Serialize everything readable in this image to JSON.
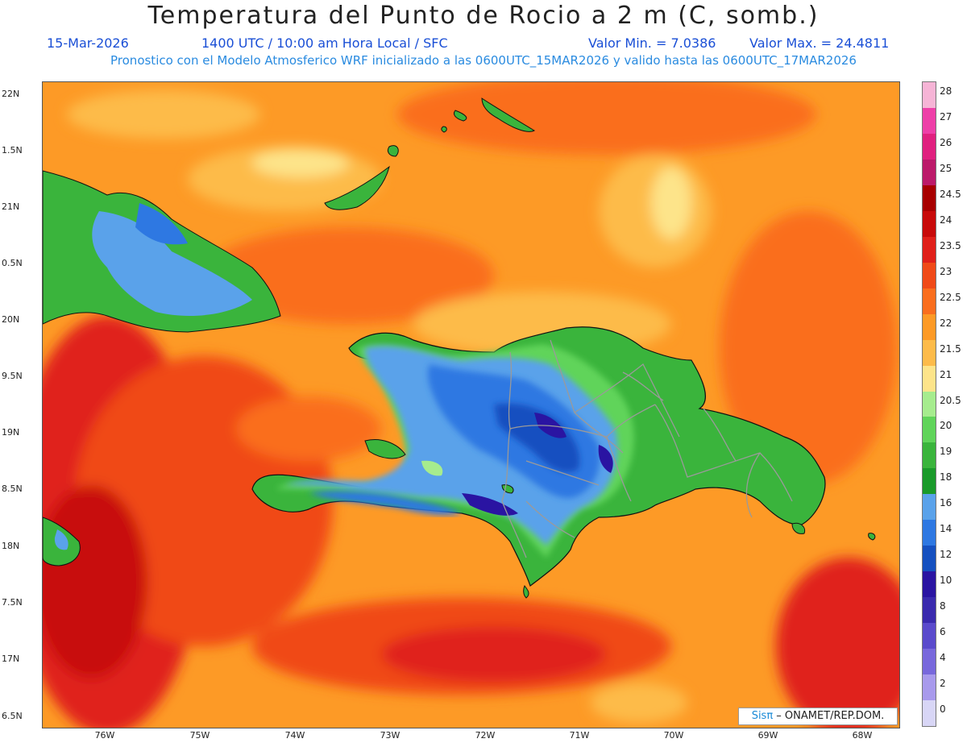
{
  "title": "Temperatura del Punto de Rocio a 2 m (C, somb.)",
  "subtitle": {
    "date": "15-Mar-2026",
    "time": "1400 UTC / 10:00 am Hora Local / SFC",
    "min": "Valor Min. = 7.0386",
    "max": "Valor Max. = 24.4811"
  },
  "model_line": "Pronostico con el Modelo Atmosferico WRF inicializado a las 0600UTC_15MAR2026 y valido hasta las  0600UTC_17MAR2026",
  "lat_labels": [
    "22N",
    "1.5N",
    "21N",
    "0.5N",
    "20N",
    "9.5N",
    "19N",
    "8.5N",
    "18N",
    "7.5N",
    "17N",
    "6.5N"
  ],
  "lon_labels": [
    "76W",
    "75W",
    "74W",
    "73W",
    "72W",
    "71W",
    "70W",
    "69W",
    "68W"
  ],
  "legend": {
    "labels": [
      "28",
      "27",
      "26",
      "25",
      "24.5",
      "24",
      "23.5",
      "23",
      "22.5",
      "22",
      "21.5",
      "21",
      "20.5",
      "20",
      "19",
      "18",
      "16",
      "14",
      "12",
      "10",
      "8",
      "6",
      "4",
      "2",
      "0"
    ],
    "colors": [
      "#f6b4d6",
      "#ee3fa8",
      "#e0207f",
      "#bc1a6a",
      "#a80000",
      "#c80a0a",
      "#e0201a",
      "#f04a18",
      "#fa6e1e",
      "#fd9a26",
      "#fdbb4a",
      "#fde48a",
      "#a6ec8e",
      "#60d45a",
      "#3ab43c",
      "#1a9a2a",
      "#5aa2ea",
      "#2e78e2",
      "#1550c0",
      "#2a14a2",
      "#3a2aae",
      "#5a4acc",
      "#7868dc",
      "#a89aec",
      "#d8d6f6"
    ]
  },
  "credit": {
    "brand": "Sisπ",
    "text": " – ONAMET/REP.DOM."
  },
  "colors": {
    "ocean": "#fd9a26",
    "coast": "#111111",
    "borders": "#9a9a9a"
  }
}
